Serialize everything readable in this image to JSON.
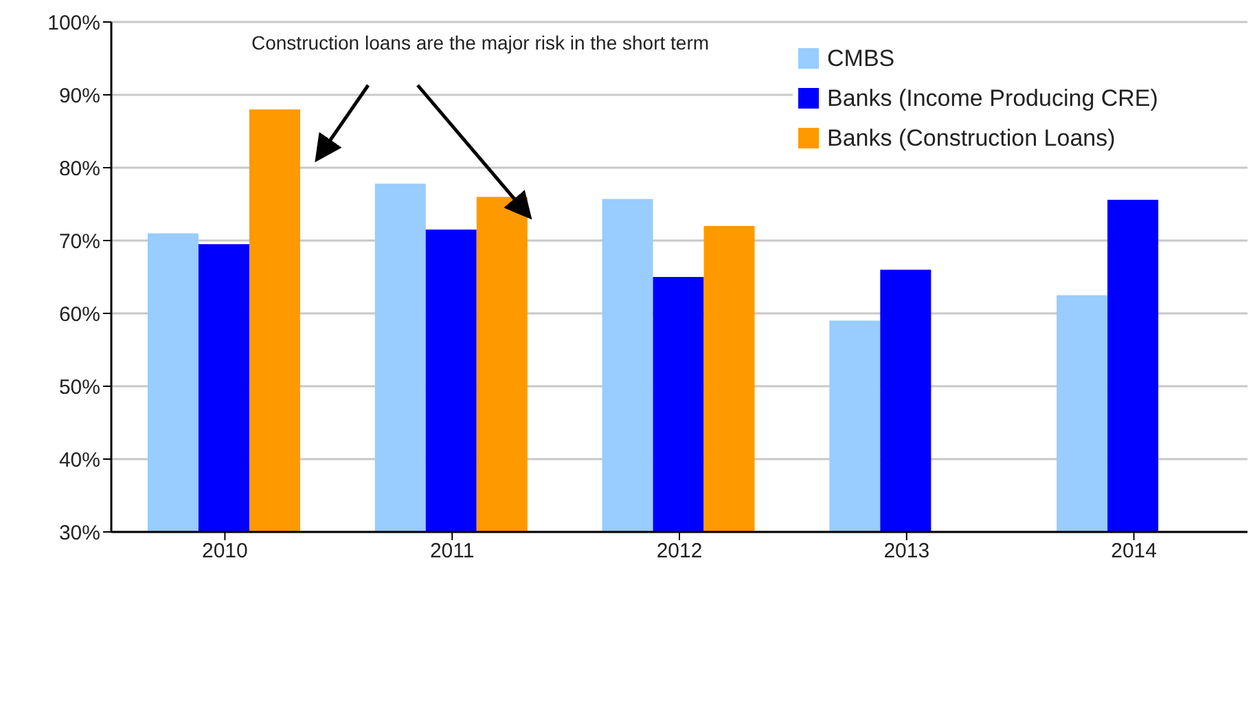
{
  "chart_data": {
    "type": "bar",
    "categories": [
      "2010",
      "2011",
      "2012",
      "2013",
      "2014"
    ],
    "series": [
      {
        "name": "CMBS",
        "color": "#99ccff",
        "values": [
          71,
          77.8,
          75.7,
          59,
          62.5
        ]
      },
      {
        "name": "Banks (Income Producing CRE)",
        "color": "#0000ff",
        "values": [
          69.5,
          71.5,
          65,
          66,
          75.6
        ]
      },
      {
        "name": "Banks (Construction Loans)",
        "color": "#ff9900",
        "values": [
          88,
          76,
          72,
          null,
          null
        ]
      }
    ],
    "ylim": [
      30,
      100
    ],
    "yticks": [
      {
        "value": 30,
        "label": "30%"
      },
      {
        "value": 40,
        "label": "40%"
      },
      {
        "value": 50,
        "label": "50%"
      },
      {
        "value": 60,
        "label": "60%"
      },
      {
        "value": 70,
        "label": "70%"
      },
      {
        "value": 80,
        "label": "80%"
      },
      {
        "value": 90,
        "label": "90%"
      },
      {
        "value": 100,
        "label": "100%"
      }
    ],
    "grid": "y",
    "legend": "top right",
    "annotations": [
      "Construction loans are the major risk in the short term"
    ]
  }
}
